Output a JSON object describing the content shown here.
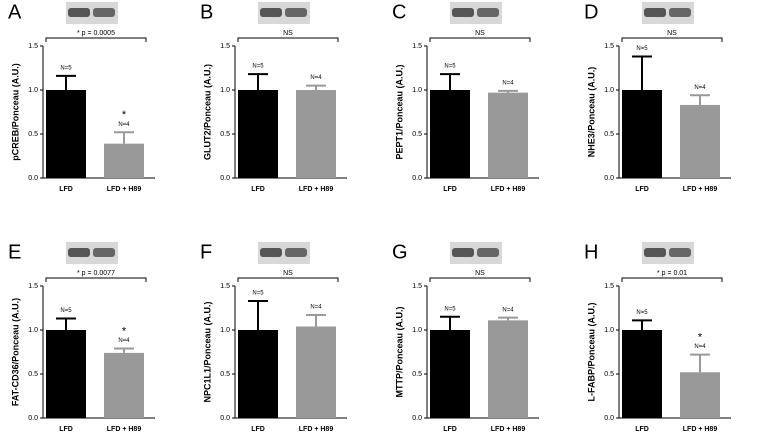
{
  "chart_data": [
    {
      "type": "bar",
      "label": "A",
      "y_label": "pCREB/Ponceau (A.U.)",
      "categories": [
        "LFD",
        "LFD + H89"
      ],
      "values": [
        1.0,
        0.39
      ],
      "errors": [
        0.16,
        0.13
      ],
      "colors": [
        "#000000",
        "#999999"
      ],
      "n_labels": [
        "N=5",
        "N=4"
      ],
      "significance": "* p = 0.0005",
      "star": "*",
      "ylim": [
        0,
        1.5
      ],
      "yticks": [
        {
          "value": 0,
          "label": "0.0"
        },
        {
          "value": 0.5,
          "label": "0.5"
        },
        {
          "value": 1,
          "label": "1.0"
        },
        {
          "value": 1.5,
          "label": "1.5"
        }
      ]
    },
    {
      "type": "bar",
      "label": "B",
      "y_label": "GLUT2/Ponceau (A.U.)",
      "categories": [
        "LFD",
        "LFD + H89"
      ],
      "values": [
        1.0,
        1.0
      ],
      "errors": [
        0.18,
        0.05
      ],
      "colors": [
        "#000000",
        "#999999"
      ],
      "n_labels": [
        "N=5",
        "N=4"
      ],
      "significance": "NS",
      "ylim": [
        0,
        1.5
      ],
      "yticks": [
        {
          "value": 0,
          "label": "0.0"
        },
        {
          "value": 0.5,
          "label": "0.5"
        },
        {
          "value": 1,
          "label": "1.0"
        },
        {
          "value": 1.5,
          "label": "1.5"
        }
      ]
    },
    {
      "type": "bar",
      "label": "C",
      "y_label": "PEPT1/Ponceau (A.U.)",
      "categories": [
        "LFD",
        "LFD + H89"
      ],
      "values": [
        1.0,
        0.97
      ],
      "errors": [
        0.18,
        0.02
      ],
      "colors": [
        "#000000",
        "#999999"
      ],
      "n_labels": [
        "N=5",
        "N=4"
      ],
      "significance": "NS",
      "ylim": [
        0,
        1.5
      ],
      "yticks": [
        {
          "value": 0,
          "label": "0.0"
        },
        {
          "value": 0.5,
          "label": "0.5"
        },
        {
          "value": 1,
          "label": "1.0"
        },
        {
          "value": 1.5,
          "label": "1.5"
        }
      ]
    },
    {
      "type": "bar",
      "label": "D",
      "y_label": "NHE3/Ponceau (A.U.)",
      "categories": [
        "LFD",
        "LFD + H89"
      ],
      "values": [
        1.0,
        0.83
      ],
      "errors": [
        0.38,
        0.11
      ],
      "colors": [
        "#000000",
        "#999999"
      ],
      "n_labels": [
        "N=5",
        "N=4"
      ],
      "significance": "NS",
      "ylim": [
        0,
        1.5
      ],
      "yticks": [
        {
          "value": 0,
          "label": "0.0"
        },
        {
          "value": 0.5,
          "label": "0.5"
        },
        {
          "value": 1,
          "label": "1.0"
        },
        {
          "value": 1.5,
          "label": "1.5"
        }
      ]
    },
    {
      "type": "bar",
      "label": "E",
      "y_label": "FAT-CD36/Ponceau (A.U.)",
      "categories": [
        "LFD",
        "LFD + H89"
      ],
      "values": [
        1.0,
        0.74
      ],
      "errors": [
        0.13,
        0.05
      ],
      "colors": [
        "#000000",
        "#999999"
      ],
      "n_labels": [
        "N=5",
        "N=4"
      ],
      "significance": "* p = 0.0077",
      "star": "*",
      "ylim": [
        0,
        1.5
      ],
      "yticks": [
        {
          "value": 0,
          "label": "0.0"
        },
        {
          "value": 0.5,
          "label": "0.5"
        },
        {
          "value": 1,
          "label": "1.0"
        },
        {
          "value": 1.5,
          "label": "1.5"
        }
      ]
    },
    {
      "type": "bar",
      "label": "F",
      "y_label": "NPC1L1/Ponceau (A.U.)",
      "categories": [
        "LFD",
        "LFD + H89"
      ],
      "values": [
        1.0,
        1.04
      ],
      "errors": [
        0.33,
        0.13
      ],
      "colors": [
        "#000000",
        "#999999"
      ],
      "n_labels": [
        "N=5",
        "N=4"
      ],
      "significance": "NS",
      "ylim": [
        0,
        1.5
      ],
      "yticks": [
        {
          "value": 0,
          "label": "0.0"
        },
        {
          "value": 0.5,
          "label": "0.5"
        },
        {
          "value": 1,
          "label": "1.0"
        },
        {
          "value": 1.5,
          "label": "1.5"
        }
      ]
    },
    {
      "type": "bar",
      "label": "G",
      "y_label": "MTTP/Ponceau (A.U.)",
      "categories": [
        "LFD",
        "LFD + H89"
      ],
      "values": [
        1.0,
        1.11
      ],
      "errors": [
        0.15,
        0.03
      ],
      "colors": [
        "#000000",
        "#999999"
      ],
      "n_labels": [
        "N=5",
        "N=4"
      ],
      "significance": "NS",
      "ylim": [
        0,
        1.5
      ],
      "yticks": [
        {
          "value": 0,
          "label": "0.0"
        },
        {
          "value": 0.5,
          "label": "0.5"
        },
        {
          "value": 1,
          "label": "1.0"
        },
        {
          "value": 1.5,
          "label": "1.5"
        }
      ]
    },
    {
      "type": "bar",
      "label": "H",
      "y_label": "L-FABP/Ponceau (A.U.)",
      "categories": [
        "LFD",
        "LFD + H89"
      ],
      "values": [
        1.0,
        0.52
      ],
      "errors": [
        0.11,
        0.2
      ],
      "colors": [
        "#000000",
        "#999999"
      ],
      "n_labels": [
        "N=5",
        "N=4"
      ],
      "significance": "* p = 0.01",
      "star": "*",
      "ylim": [
        0,
        1.5
      ],
      "yticks": [
        {
          "value": 0,
          "label": "0.0"
        },
        {
          "value": 0.5,
          "label": "0.5"
        },
        {
          "value": 1,
          "label": "1.0"
        },
        {
          "value": 1.5,
          "label": "1.5"
        }
      ]
    }
  ]
}
